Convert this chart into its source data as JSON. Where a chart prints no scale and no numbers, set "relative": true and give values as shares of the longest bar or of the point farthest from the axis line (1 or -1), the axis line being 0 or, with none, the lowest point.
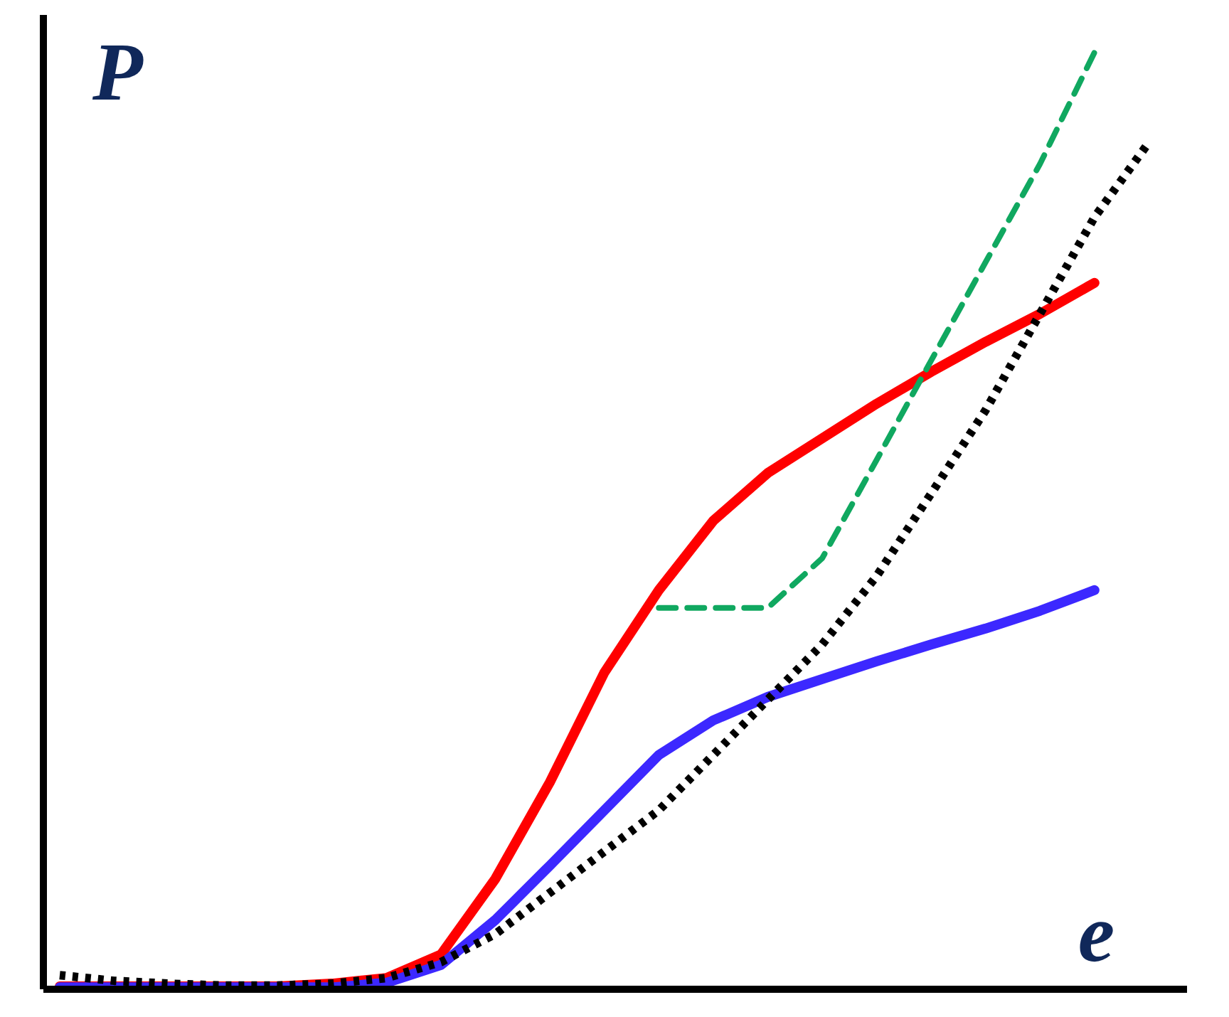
{
  "chart_data": {
    "type": "line",
    "relative": true,
    "xlabel": "e",
    "ylabel": "P",
    "categories": [
      null,
      null,
      null,
      null,
      null,
      null,
      null,
      null,
      null,
      null,
      null,
      null,
      null,
      null,
      null,
      null,
      null,
      null,
      null,
      null,
      null
    ],
    "series": [
      {
        "color": "#000000",
        "line_style": "dotted",
        "values": [
          0.015,
          0.009,
          0.006,
          0.004,
          0.004,
          0.006,
          0.012,
          0.029,
          0.059,
          0.103,
          0.147,
          0.191,
          0.25,
          0.309,
          0.368,
          0.441,
          0.529,
          0.618,
          0.721,
          0.824,
          0.904
        ]
      },
      {
        "color": "#ff0000",
        "line_style": "solid",
        "values": [
          0.003,
          0.003,
          0.003,
          0.003,
          0.003,
          0.006,
          0.012,
          0.037,
          0.118,
          0.221,
          0.338,
          0.426,
          0.5,
          0.551,
          0.588,
          0.625,
          0.659,
          0.691,
          0.721,
          0.754,
          null
        ]
      },
      {
        "color": "#3c28ff",
        "line_style": "solid",
        "values": [
          0.002,
          0.002,
          0.002,
          0.002,
          0.002,
          0.002,
          0.007,
          0.026,
          0.074,
          0.132,
          0.191,
          0.25,
          0.287,
          0.312,
          0.331,
          0.35,
          0.368,
          0.385,
          0.404,
          0.426,
          null
        ]
      },
      {
        "color": "#10a860",
        "line_style": "dashed",
        "values": [
          null,
          null,
          null,
          null,
          null,
          null,
          null,
          null,
          null,
          null,
          null,
          0.407,
          0.407,
          0.407,
          0.46,
          0.565,
          0.671,
          0.776,
          0.881,
          1.0,
          null
        ]
      }
    ]
  }
}
